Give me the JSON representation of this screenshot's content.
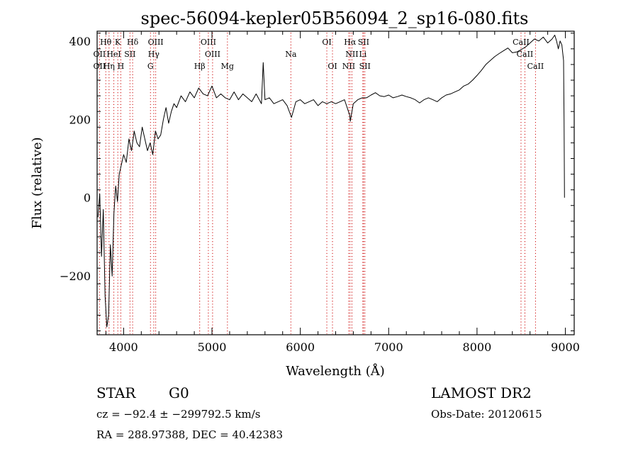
{
  "chart_data": {
    "type": "line",
    "title": "spec-56094-kepler05B56094_2_sp16-080.fits",
    "xlabel": "Wavelength (Å)",
    "ylabel": "Flux (relative)",
    "xlim": [
      3700,
      9100
    ],
    "ylim": [
      -350,
      425
    ],
    "x_ticks": [
      4000,
      5000,
      6000,
      7000,
      8000,
      9000
    ],
    "x_tick_labels": [
      "4000",
      "5000",
      "6000",
      "7000",
      "8000",
      "9000"
    ],
    "y_ticks": [
      -200,
      0,
      200,
      400
    ],
    "y_tick_labels": [
      "−200",
      "0",
      "200",
      "400"
    ],
    "grid": false,
    "series": [
      {
        "x": [
          3710,
          3730,
          3750,
          3770,
          3790,
          3810,
          3830,
          3850,
          3870,
          3890,
          3910,
          3930,
          3950,
          3970,
          4000,
          4030,
          4060,
          4090,
          4120,
          4150,
          4180,
          4210,
          4240,
          4270,
          4300,
          4330,
          4360,
          4390,
          4420,
          4450,
          4480,
          4510,
          4540,
          4570,
          4600,
          4650,
          4700,
          4750,
          4800,
          4850,
          4900,
          4950,
          5000,
          5050,
          5100,
          5150,
          5200,
          5250,
          5300,
          5350,
          5400,
          5450,
          5500,
          5560,
          5580,
          5600,
          5650,
          5700,
          5750,
          5800,
          5850,
          5900,
          5950,
          6000,
          6050,
          6100,
          6150,
          6200,
          6250,
          6300,
          6350,
          6400,
          6450,
          6500,
          6560,
          6565,
          6600,
          6650,
          6700,
          6750,
          6800,
          6850,
          6900,
          6950,
          7000,
          7050,
          7100,
          7150,
          7200,
          7250,
          7300,
          7350,
          7400,
          7450,
          7500,
          7550,
          7600,
          7650,
          7700,
          7750,
          7800,
          7850,
          7900,
          7950,
          8000,
          8050,
          8100,
          8150,
          8200,
          8250,
          8300,
          8350,
          8400,
          8450,
          8500,
          8550,
          8600,
          8650,
          8700,
          8750,
          8800,
          8850,
          8880,
          8900,
          8920,
          8940,
          8960,
          8970,
          8980,
          8985,
          8990
        ],
        "y": [
          -50,
          10,
          -150,
          -30,
          -250,
          -330,
          -300,
          -120,
          -200,
          -40,
          30,
          -10,
          60,
          80,
          110,
          90,
          150,
          120,
          170,
          140,
          130,
          180,
          150,
          120,
          140,
          110,
          170,
          150,
          160,
          200,
          230,
          190,
          220,
          240,
          230,
          260,
          245,
          270,
          255,
          280,
          265,
          260,
          285,
          255,
          265,
          255,
          250,
          270,
          250,
          265,
          255,
          245,
          265,
          240,
          345,
          250,
          255,
          240,
          245,
          250,
          235,
          205,
          245,
          250,
          240,
          245,
          250,
          235,
          245,
          240,
          245,
          240,
          245,
          250,
          210,
          195,
          240,
          250,
          255,
          255,
          262,
          268,
          260,
          258,
          262,
          255,
          258,
          262,
          258,
          255,
          250,
          242,
          250,
          255,
          250,
          245,
          255,
          262,
          265,
          270,
          275,
          285,
          290,
          300,
          312,
          325,
          340,
          350,
          360,
          368,
          375,
          382,
          370,
          372,
          378,
          385,
          395,
          405,
          400,
          410,
          395,
          405,
          415,
          400,
          380,
          400,
          390,
          370,
          350,
          200,
          0
        ]
      }
    ],
    "line_groups": [
      {
        "name": "Hθ",
        "x": 3798,
        "label_row": 1
      },
      {
        "name": "K",
        "x": 3934,
        "label_row": 1
      },
      {
        "name": "Hδ",
        "x": 4102,
        "label_row": 1
      },
      {
        "name": "OIII",
        "x": 4363,
        "label_row": 1
      },
      {
        "name": "OIII",
        "x": 4959,
        "label_row": 1
      },
      {
        "name": "OI",
        "x": 6300,
        "label_row": 1
      },
      {
        "name": "Hα",
        "x": 6563,
        "label_row": 1
      },
      {
        "name": "SII",
        "x": 6716,
        "label_row": 1
      },
      {
        "name": "CaII",
        "x": 8498,
        "label_row": 1
      },
      {
        "name": "OII",
        "x": 3727,
        "label_row": 2
      },
      {
        "name": "HeI",
        "x": 3889,
        "label_row": 2
      },
      {
        "name": "SII",
        "x": 4072,
        "label_row": 2
      },
      {
        "name": "Hγ",
        "x": 4341,
        "label_row": 2
      },
      {
        "name": "OIII",
        "x": 5007,
        "label_row": 2
      },
      {
        "name": "Na",
        "x": 5893,
        "label_row": 2
      },
      {
        "name": "NII",
        "x": 6584,
        "label_row": 2
      },
      {
        "name": "Li",
        "x": 6708,
        "label_row": 2
      },
      {
        "name": "CaII",
        "x": 8542,
        "label_row": 2
      },
      {
        "name": "OII",
        "x": 3727,
        "label_row": 3
      },
      {
        "name": "Hη",
        "x": 3835,
        "label_row": 3
      },
      {
        "name": "H",
        "x": 3968,
        "label_row": 3
      },
      {
        "name": "G",
        "x": 4304,
        "label_row": 3
      },
      {
        "name": "Hβ",
        "x": 4861,
        "label_row": 3
      },
      {
        "name": "Mg",
        "x": 5175,
        "label_row": 3
      },
      {
        "name": "OI",
        "x": 6364,
        "label_row": 3
      },
      {
        "name": "NII",
        "x": 6548,
        "label_row": 3
      },
      {
        "name": "SII",
        "x": 6731,
        "label_row": 3
      },
      {
        "name": "CaII",
        "x": 8662,
        "label_row": 3
      }
    ]
  },
  "info": {
    "class_label": "STAR",
    "subclass_label": "G0",
    "survey_label": "LAMOST DR2",
    "cz_text": "cz = −92.4 ± −299792.5 km/s",
    "obs_date_text": "Obs-Date: 20120615",
    "coords_text": "RA = 288.97388, DEC =  40.42383"
  },
  "colors": {
    "spectrum_line": "#000000",
    "marker_line": "#cc0000",
    "axis": "#000000"
  }
}
